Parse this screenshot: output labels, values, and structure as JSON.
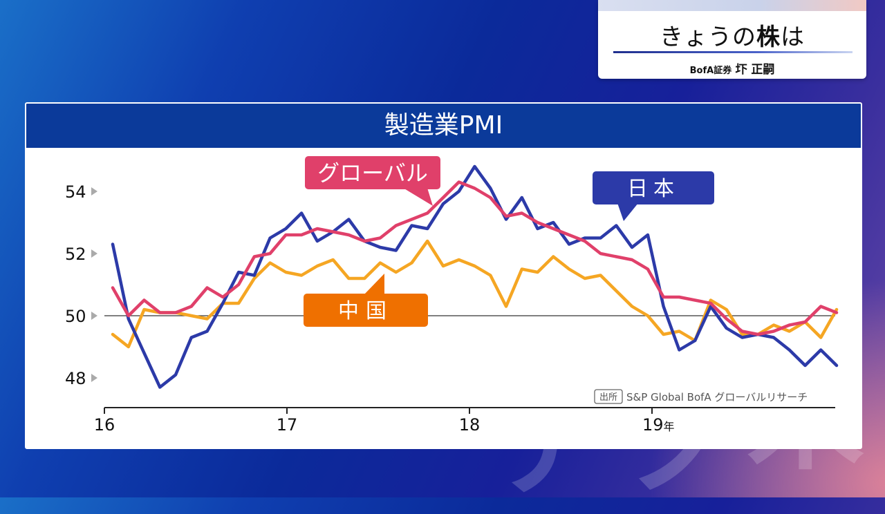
{
  "title_card": {
    "headline_prefix": "きょうの",
    "headline_bold": "株",
    "headline_suffix": "は",
    "byline_org": "BofA証券",
    "byline_name": "圷 正嗣"
  },
  "colors": {
    "japan": "#2c3aa8",
    "global": "#e0406a",
    "china": "#f5a623",
    "china_label": "#ef7000",
    "header": "#0b3a9a"
  },
  "chart_data": {
    "type": "line",
    "title": "製造業PMI",
    "source_badge": "出所",
    "source_text": "S&P Global BofA グローバルリサーチ",
    "x_tick_labels": [
      "16",
      "17",
      "18",
      "19年"
    ],
    "x_range": [
      2016.0,
      2020.0
    ],
    "y_ticks": [
      48,
      50,
      52,
      54
    ],
    "y_range": [
      47,
      55.3
    ],
    "reference_line": 50,
    "series": [
      {
        "name": "日本",
        "key": "japan",
        "values": [
          52.3,
          49.9,
          48.8,
          47.7,
          48.1,
          49.3,
          49.5,
          50.4,
          51.4,
          51.3,
          52.5,
          52.8,
          53.3,
          52.4,
          52.7,
          53.1,
          52.4,
          52.2,
          52.1,
          52.9,
          52.8,
          53.6,
          54.0,
          54.8,
          54.1,
          53.1,
          53.8,
          52.8,
          53.0,
          52.3,
          52.5,
          52.5,
          52.9,
          52.2,
          52.6,
          50.3,
          48.9,
          49.2,
          50.3,
          49.6,
          49.3,
          49.4,
          49.3,
          48.9,
          48.4,
          48.9,
          48.4
        ]
      },
      {
        "name": "グローバル",
        "key": "global",
        "values": [
          50.9,
          50.0,
          50.5,
          50.1,
          50.1,
          50.3,
          50.9,
          50.6,
          51.0,
          51.9,
          52.0,
          52.6,
          52.6,
          52.8,
          52.7,
          52.6,
          52.4,
          52.5,
          52.9,
          53.1,
          53.3,
          53.8,
          54.3,
          54.1,
          53.8,
          53.2,
          53.3,
          53.0,
          52.8,
          52.6,
          52.4,
          52.0,
          51.9,
          51.8,
          51.5,
          50.6,
          50.6,
          50.5,
          50.4,
          49.9,
          49.5,
          49.4,
          49.5,
          49.7,
          49.8,
          50.3,
          50.1
        ]
      },
      {
        "name": "中国",
        "key": "china",
        "values": [
          49.4,
          49.0,
          50.2,
          50.1,
          50.1,
          50.0,
          49.9,
          50.4,
          50.4,
          51.2,
          51.7,
          51.4,
          51.3,
          51.6,
          51.8,
          51.2,
          51.2,
          51.7,
          51.4,
          51.7,
          52.4,
          51.6,
          51.8,
          51.6,
          51.3,
          50.3,
          51.5,
          51.4,
          51.9,
          51.5,
          51.2,
          51.3,
          50.8,
          50.3,
          50.0,
          49.4,
          49.5,
          49.2,
          50.5,
          50.2,
          49.4,
          49.4,
          49.7,
          49.5,
          49.8,
          49.3,
          50.2
        ]
      }
    ]
  }
}
